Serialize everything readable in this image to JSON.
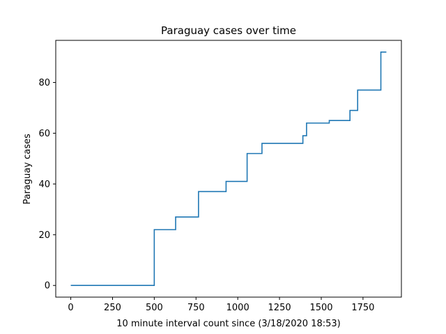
{
  "chart_data": {
    "type": "line",
    "title": "Paraguay cases over time",
    "xlabel": "10 minute interval count since (3/18/2020 18:53)",
    "ylabel": "Paraguay cases",
    "xlim": [
      -90,
      1980
    ],
    "ylim": [
      -4.6,
      96.6
    ],
    "xticks": [
      0,
      250,
      500,
      750,
      1000,
      1250,
      1500,
      1750
    ],
    "yticks": [
      0,
      20,
      40,
      60,
      80
    ],
    "grid": false,
    "step": "post",
    "series": [
      {
        "color": "#1f77b4",
        "x": [
          0,
          500,
          628,
          765,
          930,
          1056,
          1145,
          1390,
          1405,
          1412,
          1548,
          1672,
          1718,
          1857,
          1890
        ],
        "y": [
          0,
          22,
          27,
          37,
          41,
          52,
          56,
          59,
          59,
          64,
          65,
          69,
          77,
          92,
          92
        ]
      }
    ]
  }
}
